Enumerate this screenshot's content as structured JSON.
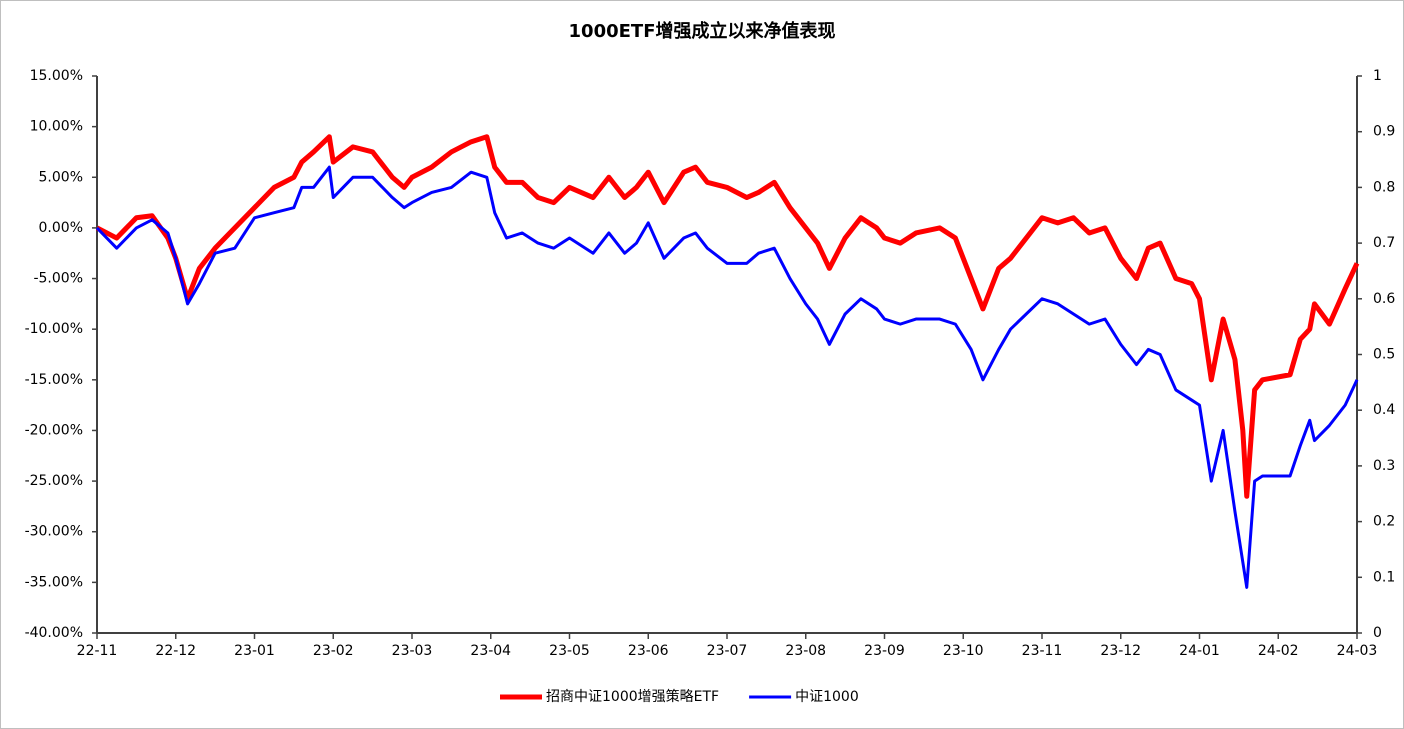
{
  "chart_data": {
    "type": "line",
    "title": "1000ETF增强成立以来净值表现",
    "x": [
      0,
      0.25,
      0.5,
      0.7,
      0.9,
      1.0,
      1.15,
      1.3,
      1.5,
      1.75,
      2.0,
      2.25,
      2.5,
      2.6,
      2.75,
      2.95,
      3.0,
      3.25,
      3.5,
      3.75,
      3.9,
      4.0,
      4.25,
      4.5,
      4.75,
      4.95,
      5.05,
      5.2,
      5.4,
      5.6,
      5.8,
      6.0,
      6.3,
      6.5,
      6.7,
      6.85,
      7.0,
      7.2,
      7.45,
      7.6,
      7.75,
      8.0,
      8.25,
      8.4,
      8.6,
      8.8,
      9.0,
      9.15,
      9.3,
      9.5,
      9.7,
      9.9,
      10.0,
      10.2,
      10.4,
      10.7,
      10.9,
      11.1,
      11.25,
      11.45,
      11.6,
      11.8,
      12.0,
      12.2,
      12.4,
      12.6,
      12.8,
      13.0,
      13.2,
      13.35,
      13.5,
      13.7,
      13.9,
      14.0,
      14.15,
      14.3,
      14.45,
      14.55,
      14.6,
      14.7,
      14.8,
      15.15,
      15.28,
      15.4,
      15.46,
      15.65,
      15.85,
      16.0
    ],
    "series": [
      {
        "name": "招商中证1000增强策略ETF",
        "color": "#ff0000",
        "values": [
          0,
          -1,
          1,
          1.2,
          -1,
          -3,
          -7,
          -4,
          -2,
          0,
          2,
          4,
          5,
          6.5,
          7.5,
          9,
          6.5,
          8,
          7.5,
          5,
          4,
          5,
          6,
          7.5,
          8.5,
          9,
          6,
          4.5,
          4.5,
          3,
          2.5,
          4,
          3,
          5,
          3,
          4,
          5.5,
          2.5,
          5.5,
          6,
          4.5,
          4,
          3,
          3.5,
          4.5,
          2,
          0,
          -1.5,
          -4,
          -1,
          1,
          0,
          -1,
          -1.5,
          -0.5,
          0,
          -1,
          -5,
          -8,
          -4,
          -3,
          -1,
          1,
          0.5,
          1,
          -0.5,
          0,
          -3,
          -5,
          -2,
          -1.5,
          -5,
          -5.5,
          -7,
          -15,
          -9,
          -13,
          -20,
          -26.5,
          -16,
          -15,
          -14.5,
          -11,
          -10,
          -7.5,
          -9.5,
          -6,
          -3.5
        ]
      },
      {
        "name": "中证1000",
        "color": "#0000ff",
        "values": [
          0,
          -2,
          0,
          0.8,
          -0.5,
          -3,
          -7.5,
          -5.5,
          -2.5,
          -2,
          1,
          1.5,
          2,
          4,
          4,
          6,
          3,
          5,
          5,
          3,
          2,
          2.5,
          3.5,
          4,
          5.5,
          5,
          1.5,
          -1,
          -0.5,
          -1.5,
          -2,
          -1,
          -2.5,
          -0.5,
          -2.5,
          -1.5,
          0.5,
          -3,
          -1,
          -0.5,
          -2,
          -3.5,
          -3.5,
          -2.5,
          -2,
          -5,
          -7.5,
          -9,
          -11.5,
          -8.5,
          -7,
          -8,
          -9,
          -9.5,
          -9,
          -9,
          -9.5,
          -12,
          -15,
          -12,
          -10,
          -8.5,
          -7,
          -7.5,
          -8.5,
          -9.5,
          -9,
          -11.5,
          -13.5,
          -12,
          -12.5,
          -16,
          -17,
          -17.5,
          -25,
          -20,
          -28,
          -33,
          -35.5,
          -25,
          -24.5,
          -24.5,
          -21.5,
          -19,
          -21,
          -19.5,
          -17.5,
          -15
        ]
      }
    ],
    "xlim": [
      0,
      16
    ],
    "xticks": [
      {
        "value": 0,
        "label": "22-11"
      },
      {
        "value": 1,
        "label": "22-12"
      },
      {
        "value": 2,
        "label": "23-01"
      },
      {
        "value": 3,
        "label": "23-02"
      },
      {
        "value": 4,
        "label": "23-03"
      },
      {
        "value": 5,
        "label": "23-04"
      },
      {
        "value": 6,
        "label": "23-05"
      },
      {
        "value": 7,
        "label": "23-06"
      },
      {
        "value": 8,
        "label": "23-07"
      },
      {
        "value": 9,
        "label": "23-08"
      },
      {
        "value": 10,
        "label": "23-09"
      },
      {
        "value": 11,
        "label": "23-10"
      },
      {
        "value": 12,
        "label": "23-11"
      },
      {
        "value": 13,
        "label": "23-12"
      },
      {
        "value": 14,
        "label": "24-01"
      },
      {
        "value": 15,
        "label": "24-02"
      },
      {
        "value": 16,
        "label": "24-03"
      }
    ],
    "ylim": [
      -40,
      15
    ],
    "yticks": [
      {
        "value": 15,
        "label": "15.00%"
      },
      {
        "value": 10,
        "label": "10.00%"
      },
      {
        "value": 5,
        "label": "5.00%"
      },
      {
        "value": 0,
        "label": "0.00%"
      },
      {
        "value": -5,
        "label": "-5.00%"
      },
      {
        "value": -10,
        "label": "-10.00%"
      },
      {
        "value": -15,
        "label": "-15.00%"
      },
      {
        "value": -20,
        "label": "-20.00%"
      },
      {
        "value": -25,
        "label": "-25.00%"
      },
      {
        "value": -30,
        "label": "-30.00%"
      },
      {
        "value": -35,
        "label": "-35.00%"
      },
      {
        "value": -40,
        "label": "-40.00%"
      }
    ],
    "y2lim": [
      0,
      1
    ],
    "y2ticks": [
      1,
      0.9,
      0.8,
      0.7,
      0.6,
      0.5,
      0.4,
      0.3,
      0.2,
      0.1,
      0
    ],
    "grid": false,
    "legend": "bottom"
  }
}
